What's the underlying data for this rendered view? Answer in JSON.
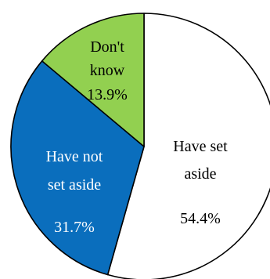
{
  "chart_data": {
    "type": "pie",
    "title": "",
    "slices": [
      {
        "label_lines": [
          "Have set",
          "aside"
        ],
        "value": 54.4,
        "display": "54.4%",
        "color": "#ffffff",
        "text_color": "#000000"
      },
      {
        "label_lines": [
          "Have not",
          "set aside"
        ],
        "value": 31.7,
        "display": "31.7%",
        "color": "#0a6ebd",
        "text_color": "#ffffff"
      },
      {
        "label_lines": [
          "Don't",
          "know"
        ],
        "value": 13.9,
        "display": "13.9%",
        "color": "#92d050",
        "text_color": "#000000"
      }
    ]
  }
}
